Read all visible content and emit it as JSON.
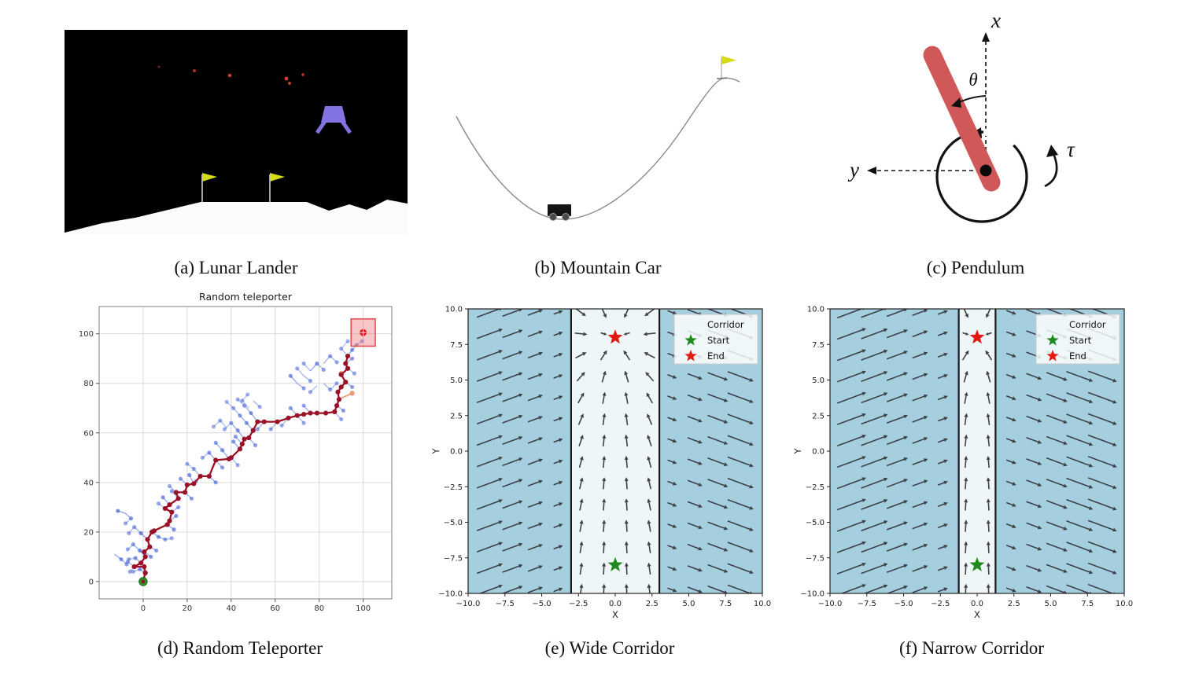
{
  "figure": {
    "captions": {
      "a": "(a) Lunar Lander",
      "b": "(b) Mountain Car",
      "c": "(c) Pendulum",
      "d": "(d) Random Teleporter",
      "e": "(e) Wide Corridor",
      "f": "(f) Narrow Corridor"
    }
  },
  "pendulum": {
    "x_label": "x",
    "y_label": "y",
    "theta_label": "θ",
    "tau_label": "τ"
  },
  "env_colors": {
    "lander_purple": "#8273e2",
    "flag_yellow": "#d6da18",
    "rod_red": "#d15858",
    "particle_red": "#c84432"
  },
  "chart_data": [
    {
      "id": "teleporter",
      "type": "scatter",
      "title": "Random teleporter",
      "xlabel": "",
      "ylabel": "",
      "xlim": [
        -20,
        113
      ],
      "ylim": [
        -7,
        111
      ],
      "xticks": [
        0,
        20,
        40,
        60,
        80,
        100
      ],
      "yticks": [
        0,
        20,
        40,
        60,
        80,
        100
      ],
      "grid": true,
      "path_color": "#9b1127",
      "tree_color": "#4663d8",
      "orange_color": "#e8926a",
      "start": {
        "x": 0,
        "y": 0,
        "color": "#2ca02c"
      },
      "goal": {
        "cx": 100,
        "cy": 100.5,
        "half": 5.5,
        "fill": "#f08080",
        "edge": "#e05252",
        "dot_color": "#dd1515"
      },
      "red_path": [
        [
          0,
          0
        ],
        [
          1,
          3.5
        ],
        [
          0.5,
          6
        ],
        [
          -4,
          6
        ],
        [
          -1,
          7.5
        ],
        [
          1,
          10
        ],
        [
          0.5,
          12
        ],
        [
          3,
          14
        ],
        [
          2,
          17
        ],
        [
          4,
          20
        ],
        [
          5,
          20.5
        ],
        [
          11,
          23
        ],
        [
          12,
          24.5
        ],
        [
          13,
          28
        ],
        [
          10,
          29.5
        ],
        [
          12,
          31
        ],
        [
          16,
          33.5
        ],
        [
          15,
          36
        ],
        [
          19,
          36
        ],
        [
          20,
          39
        ],
        [
          23,
          39.5
        ],
        [
          26,
          42.5
        ],
        [
          30,
          42.5
        ],
        [
          33,
          49
        ],
        [
          39,
          49.5
        ],
        [
          40,
          50
        ],
        [
          44,
          53.5
        ],
        [
          45,
          55.5
        ],
        [
          46,
          57.5
        ],
        [
          48,
          58
        ],
        [
          50,
          61
        ],
        [
          52,
          64.5
        ],
        [
          55,
          64.5
        ],
        [
          61,
          64.5
        ],
        [
          66,
          66
        ],
        [
          70,
          67
        ],
        [
          73,
          67.5
        ],
        [
          76,
          68
        ],
        [
          79,
          68
        ],
        [
          83,
          68
        ],
        [
          87,
          68.5
        ],
        [
          88,
          71
        ],
        [
          89,
          73.5
        ],
        [
          88.5,
          76.5
        ],
        [
          90,
          78.5
        ],
        [
          92,
          80.5
        ],
        [
          90,
          83.5
        ],
        [
          93,
          86
        ],
        [
          92,
          88
        ],
        [
          93,
          91
        ]
      ],
      "tree_segments": [
        [
          1,
          3.5,
          -1.5,
          5,
          0.5
        ],
        [
          -1.5,
          5,
          -4.5,
          4,
          0.4
        ],
        [
          -4,
          6,
          -7,
          8,
          0.45
        ],
        [
          -4,
          6,
          -6,
          4,
          0.4
        ],
        [
          -1,
          7.5,
          -3.5,
          9.5,
          0.5
        ],
        [
          -3.5,
          9.5,
          -6.5,
          9,
          0.4
        ],
        [
          1,
          10,
          -1.5,
          12.5,
          0.55
        ],
        [
          -1.5,
          12.5,
          -4.5,
          15,
          0.45
        ],
        [
          -4.5,
          15,
          -7,
          13,
          0.4
        ],
        [
          0.5,
          12,
          3.5,
          10,
          0.5
        ],
        [
          3,
          14,
          6,
          12.5,
          0.45
        ],
        [
          2,
          17,
          -1,
          19.5,
          0.55
        ],
        [
          -1,
          19.5,
          -4,
          22,
          0.45
        ],
        [
          -4,
          22,
          -6.5,
          19.5,
          0.4
        ],
        [
          -8,
          27.5,
          -11.5,
          28.5,
          0.55
        ],
        [
          -8,
          27.5,
          -5.5,
          25.5,
          0.5
        ],
        [
          -5.5,
          25.5,
          -8,
          23.5,
          0.4
        ],
        [
          -13,
          11,
          -10,
          9,
          0.5
        ],
        [
          -10,
          9,
          -7.5,
          7,
          0.45
        ],
        [
          4,
          20,
          7,
          18,
          0.5
        ],
        [
          7,
          18,
          10,
          17,
          0.45
        ],
        [
          10,
          17,
          13,
          17.5,
          0.4
        ],
        [
          11,
          23,
          14,
          21,
          0.5
        ],
        [
          12,
          24.5,
          15,
          26.5,
          0.5
        ],
        [
          13,
          28,
          16,
          30,
          0.45
        ],
        [
          10,
          29.5,
          7,
          31.5,
          0.4
        ],
        [
          12,
          31,
          9,
          34,
          0.5
        ],
        [
          16,
          33.5,
          13,
          36.5,
          0.45
        ],
        [
          15,
          36,
          12,
          38.5,
          0.4
        ],
        [
          19,
          36,
          22,
          33.5,
          0.45
        ],
        [
          20,
          39,
          17,
          41.5,
          0.45
        ],
        [
          23,
          39.5,
          21,
          43,
          0.5
        ],
        [
          26,
          42.5,
          23,
          45.5,
          0.45
        ],
        [
          23,
          45.5,
          20,
          47.5,
          0.4
        ],
        [
          30,
          42.5,
          33,
          40,
          0.5
        ],
        [
          27,
          43.5,
          24,
          40.5,
          0.4
        ],
        [
          33,
          49,
          30,
          52,
          0.5
        ],
        [
          30,
          52,
          27,
          50,
          0.4
        ],
        [
          33,
          49,
          36,
          46,
          0.45
        ],
        [
          39,
          49.5,
          36,
          53,
          0.5
        ],
        [
          36,
          53,
          33,
          56,
          0.45
        ],
        [
          40,
          50,
          43,
          47,
          0.4
        ],
        [
          44,
          53.5,
          41,
          56.5,
          0.5
        ],
        [
          45,
          55.5,
          42,
          58.5,
          0.45
        ],
        [
          46,
          57.5,
          43,
          61,
          0.5
        ],
        [
          43,
          61,
          40,
          64,
          0.45
        ],
        [
          40,
          64,
          37,
          61.5,
          0.4
        ],
        [
          48,
          58,
          51,
          55,
          0.45
        ],
        [
          50,
          61,
          47,
          64,
          0.5
        ],
        [
          47,
          64,
          44,
          67,
          0.45
        ],
        [
          44,
          67,
          41,
          70,
          0.4
        ],
        [
          41,
          70,
          38,
          72.5,
          0.35
        ],
        [
          52,
          64.5,
          49,
          68,
          0.5
        ],
        [
          49,
          68,
          46,
          71,
          0.45
        ],
        [
          46,
          71,
          43,
          73.5,
          0.4
        ],
        [
          38,
          62,
          35,
          65,
          0.4
        ],
        [
          35,
          65,
          32,
          62.5,
          0.35
        ],
        [
          55,
          64.5,
          52,
          61.5,
          0.45
        ],
        [
          48,
          70,
          45,
          73,
          0.4
        ],
        [
          45,
          73,
          47.5,
          75.5,
          0.35
        ],
        [
          50,
          73,
          53,
          70.5,
          0.4
        ],
        [
          61,
          64.5,
          58,
          61.5,
          0.45
        ],
        [
          66,
          66,
          63,
          63,
          0.4
        ],
        [
          70,
          67,
          67,
          70,
          0.45
        ],
        [
          70,
          67,
          73,
          64,
          0.4
        ],
        [
          76,
          68,
          73,
          71,
          0.45
        ],
        [
          70,
          80,
          67,
          83,
          0.5
        ],
        [
          70,
          80,
          73,
          78,
          0.45
        ],
        [
          73,
          83,
          70,
          86,
          0.4
        ],
        [
          73,
          83,
          76,
          81,
          0.45
        ],
        [
          76,
          85,
          79,
          88,
          0.5
        ],
        [
          79,
          88,
          82,
          85.5,
          0.45
        ],
        [
          76,
          85,
          73,
          88,
          0.4
        ],
        [
          82,
          80,
          85,
          77.5,
          0.45
        ],
        [
          85,
          77.5,
          88,
          80,
          0.4
        ],
        [
          79,
          79,
          76,
          76.5,
          0.4
        ],
        [
          82,
          88,
          85,
          91,
          0.45
        ],
        [
          85,
          91,
          88,
          88.5,
          0.4
        ],
        [
          87,
          68.5,
          90,
          65.5,
          0.4
        ],
        [
          88,
          71,
          91,
          69,
          0.45
        ],
        [
          92,
          80.5,
          95,
          78.5,
          0.45
        ],
        [
          93,
          86,
          96,
          84,
          0.4
        ],
        [
          92,
          88,
          95,
          90,
          0.45
        ],
        [
          93,
          91,
          95,
          93.5,
          0.5
        ],
        [
          95,
          93.5,
          97,
          95.5,
          0.45
        ],
        [
          93,
          91,
          90,
          94,
          0.4
        ],
        [
          90,
          94,
          93,
          97,
          0.35
        ],
        [
          97,
          95.5,
          99.5,
          97,
          0.4
        ]
      ],
      "orange_segments": [
        [
          90,
          74,
          95,
          76
        ]
      ],
      "orange_dots": [
        [
          95,
          76
        ],
        [
          90,
          84
        ]
      ]
    },
    {
      "id": "wide",
      "type": "quiver",
      "title": "",
      "xlabel": "X",
      "ylabel": "Y",
      "xlim": [
        -10,
        10
      ],
      "ylim": [
        -10,
        10
      ],
      "ticks": [
        -10,
        -7.5,
        -5,
        -2.5,
        0,
        2.5,
        5,
        7.5,
        10
      ],
      "corridor_halfwidth": 3.0,
      "start": [
        0,
        -8
      ],
      "end": [
        0,
        8
      ],
      "legend": {
        "corridor": "Corridor",
        "start": "Start",
        "end": "End",
        "position": "upper-right"
      },
      "colors": {
        "outside": "#a5cfdf",
        "corridor": "#eef6f8",
        "wall": "#1a1a1a",
        "arrow": "#3c4146",
        "start": "#1f8b1f",
        "end": "#e31a12"
      },
      "grid": {
        "x_step": 1.55,
        "x_offset": 0.775,
        "y_step": 1.5,
        "y_offset": 0.75
      },
      "field": {
        "outside_angle_deg": 21,
        "len_base": 0.45,
        "len_slope": 0.26,
        "len_max": 2.1,
        "inside_len": 0.85
      }
    },
    {
      "id": "narrow",
      "type": "quiver",
      "title": "",
      "xlabel": "X",
      "ylabel": "Y",
      "xlim": [
        -10,
        10
      ],
      "ylim": [
        -10,
        10
      ],
      "ticks": [
        -10,
        -7.5,
        -5,
        -2.5,
        0,
        2.5,
        5,
        7.5,
        10
      ],
      "corridor_halfwidth": 1.25,
      "start": [
        0,
        -8
      ],
      "end": [
        0,
        8
      ],
      "legend": {
        "corridor": "Corridor",
        "start": "Start",
        "end": "End",
        "position": "upper-right"
      },
      "colors": {
        "outside": "#a5cfdf",
        "corridor": "#eef6f8",
        "wall": "#1a1a1a",
        "arrow": "#3c4146",
        "start": "#1f8b1f",
        "end": "#e31a12"
      },
      "grid": {
        "x_step": 1.55,
        "x_offset": 0.775,
        "y_step": 1.5,
        "y_offset": 0.75
      },
      "field": {
        "outside_angle_deg": 21,
        "len_base": 0.45,
        "len_slope": 0.26,
        "len_max": 2.1,
        "inside_len": 0.85
      }
    }
  ]
}
